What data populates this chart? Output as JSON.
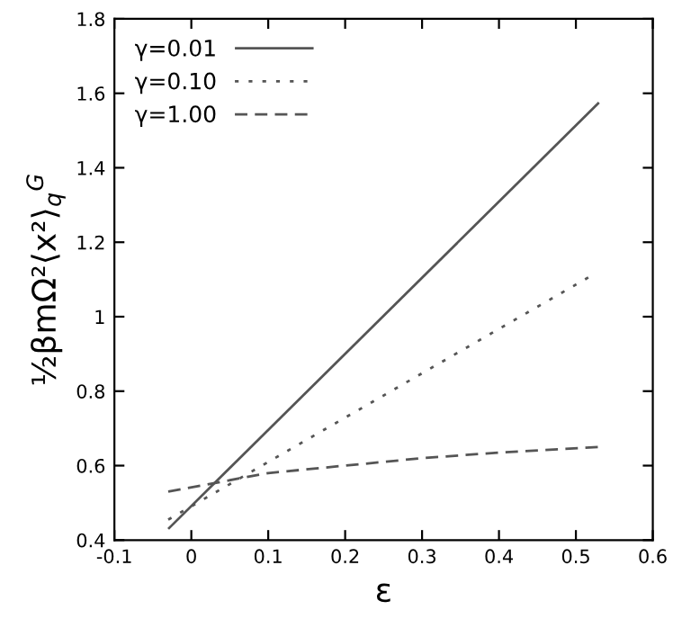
{
  "chart_data": {
    "type": "line",
    "xlabel": "ε",
    "ylabel": "½βmΩ²⟨x²⟩$_{q}$$^{G}$",
    "xlim": [
      -0.1,
      0.6
    ],
    "xticks": [
      -0.1,
      0,
      0.1,
      0.2,
      0.3,
      0.4,
      0.5,
      0.6
    ],
    "ylim": [
      0.4,
      1.8
    ],
    "yticks": [
      0.4,
      0.6,
      0.8,
      1,
      1.2,
      1.4,
      1.6,
      1.8
    ],
    "grid": false,
    "legend": "top left",
    "marker": "none",
    "series": [
      {
        "name": "γ=0.01",
        "color": "#555555",
        "line_style": "solid",
        "x": [
          -0.03,
          0.53
        ],
        "values": [
          0.43,
          1.575
        ]
      },
      {
        "name": "γ=0.10",
        "color": "#555555",
        "line_style": "dotted",
        "x": [
          -0.03,
          0.52
        ],
        "values": [
          0.455,
          1.11
        ]
      },
      {
        "name": "γ=1.00",
        "color": "#555555",
        "line_style": "dashed",
        "x": [
          -0.03,
          0.1,
          0.2,
          0.3,
          0.4,
          0.53
        ],
        "values": [
          0.53,
          0.58,
          0.6,
          0.62,
          0.635,
          0.65
        ]
      }
    ]
  }
}
